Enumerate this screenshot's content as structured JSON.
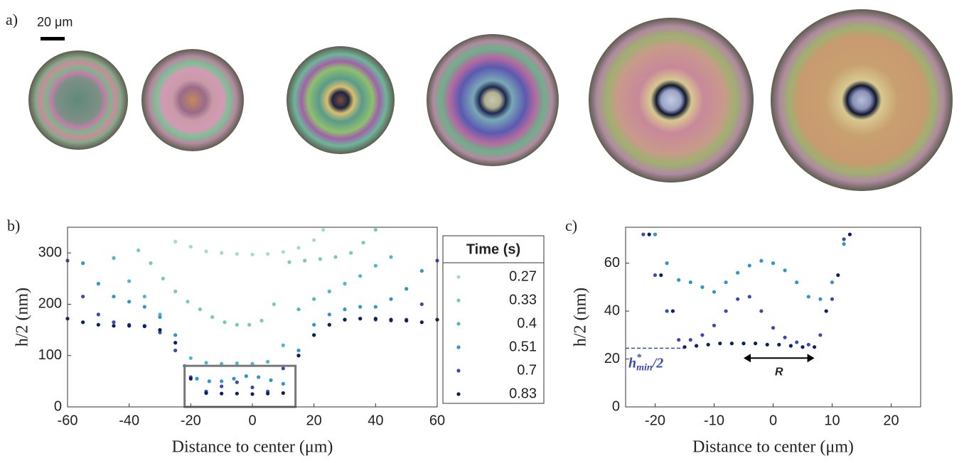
{
  "panel_a": {
    "label": "a)",
    "scale_bar": "20 μm"
  },
  "chart_data": [
    {
      "type": "scatter",
      "panel_label": "b)",
      "xlabel": "Distance to center (μm)",
      "ylabel": "h/2 (nm)",
      "xlim": [
        -60,
        60
      ],
      "ylim": [
        0,
        350
      ],
      "xticks": [
        -60,
        -40,
        -20,
        0,
        20,
        40,
        60
      ],
      "yticks": [
        0,
        100,
        200,
        300
      ],
      "legend_title": "Time (s)",
      "zoom_box": {
        "xlim": [
          -22,
          14
        ],
        "ylim": [
          0,
          80
        ]
      },
      "series": [
        {
          "name": "0.27",
          "color": "#a6dcc4",
          "x": [
            -25,
            -20,
            -15,
            -10,
            -5,
            0,
            5,
            10,
            15,
            20,
            23
          ],
          "values": [
            322,
            312,
            303,
            300,
            298,
            297,
            298,
            302,
            310,
            325,
            345
          ]
        },
        {
          "name": "0.33",
          "color": "#78c9b6",
          "x": [
            -37,
            -33,
            -29,
            -25,
            -21,
            -17,
            -13,
            -9,
            -5,
            -1,
            3,
            7,
            12,
            17,
            22,
            27,
            32,
            36,
            40
          ],
          "values": [
            305,
            280,
            250,
            225,
            205,
            190,
            175,
            165,
            160,
            160,
            168,
            200,
            282,
            285,
            288,
            292,
            300,
            320,
            345
          ]
        },
        {
          "name": "0.4",
          "color": "#52b6c4",
          "x": [
            -45,
            -40,
            -35,
            -30,
            -25,
            -20,
            -15,
            -10,
            -5,
            0,
            5,
            10,
            15,
            20,
            25,
            30,
            35,
            40,
            45
          ],
          "values": [
            290,
            245,
            215,
            180,
            140,
            95,
            86,
            84,
            85,
            84,
            88,
            120,
            190,
            210,
            225,
            240,
            255,
            275,
            292
          ]
        },
        {
          "name": "0.51",
          "color": "#2f96c6",
          "x": [
            -55,
            -50,
            -45,
            -40,
            -35,
            -30,
            -25,
            -22,
            -18,
            -14,
            -10,
            -6,
            -2,
            2,
            6,
            10,
            15,
            20,
            25,
            30,
            35,
            40,
            45,
            50,
            55
          ],
          "values": [
            280,
            240,
            215,
            205,
            195,
            175,
            140,
            80,
            55,
            50,
            50,
            55,
            60,
            58,
            52,
            45,
            110,
            160,
            180,
            190,
            195,
            195,
            210,
            230,
            265
          ]
        },
        {
          "name": "0.7",
          "color": "#3a4ab0",
          "x": [
            -60,
            -55,
            -50,
            -45,
            -40,
            -35,
            -30,
            -25,
            -20,
            -15,
            -10,
            -5,
            0,
            5,
            10,
            15,
            20,
            25,
            30,
            35,
            40,
            45,
            50,
            55,
            60
          ],
          "values": [
            285,
            215,
            180,
            165,
            160,
            158,
            145,
            110,
            58,
            30,
            40,
            48,
            38,
            30,
            75,
            100,
            140,
            160,
            170,
            172,
            170,
            168,
            170,
            200,
            285
          ]
        },
        {
          "name": "0.83",
          "color": "#0d1f5c",
          "x": [
            -60,
            -55,
            -50,
            -45,
            -40,
            -35,
            -30,
            -25,
            -20,
            -15,
            -10,
            -5,
            0,
            5,
            10,
            15,
            20,
            25,
            30,
            35,
            40,
            45,
            50,
            55,
            60
          ],
          "values": [
            172,
            165,
            160,
            158,
            158,
            157,
            150,
            125,
            55,
            27,
            26,
            26,
            25,
            26,
            27,
            100,
            140,
            160,
            170,
            172,
            172,
            170,
            168,
            165,
            170
          ]
        }
      ]
    },
    {
      "type": "scatter",
      "panel_label": "c)",
      "xlabel": "Distance to center (μm)",
      "ylabel": "h/2 (nm)",
      "xlim": [
        -25,
        25
      ],
      "ylim": [
        0,
        75
      ],
      "xticks": [
        -20,
        -10,
        0,
        10,
        20
      ],
      "yticks": [
        0,
        20,
        40,
        60
      ],
      "hmin": {
        "base": "h",
        "sup": "*",
        "sub": "min",
        "rest": "/2",
        "value": 24.5
      },
      "r_arrow": {
        "label": "R",
        "x": [
          -5,
          7
        ],
        "y": 18
      },
      "series": [
        {
          "color": "#2f96c6",
          "x": [
            -20,
            -18,
            -16,
            -14,
            -12,
            -10,
            -8,
            -6,
            -4,
            -2,
            0,
            2,
            4,
            6,
            8,
            10,
            12
          ],
          "values": [
            72,
            60,
            53,
            52,
            50,
            48,
            52,
            56,
            59,
            61,
            60,
            57,
            52,
            46,
            45,
            52,
            68
          ]
        },
        {
          "color": "#3a4ab0",
          "x": [
            -22,
            -20,
            -18,
            -16,
            -14,
            -12,
            -10,
            -8,
            -6,
            -4,
            -2,
            0,
            2,
            4,
            6,
            8,
            10,
            12
          ],
          "values": [
            72,
            55,
            40,
            28,
            28,
            30,
            34,
            40,
            45,
            46,
            40,
            33,
            29,
            27,
            26,
            30,
            45,
            70
          ]
        },
        {
          "color": "#0d1f5c",
          "x": [
            -21,
            -19,
            -17,
            -15,
            -13,
            -11,
            -9,
            -7,
            -5,
            -3,
            -1,
            1,
            3,
            5,
            7,
            9,
            11,
            13
          ],
          "values": [
            72,
            55,
            40,
            25,
            25.5,
            26,
            26.5,
            26.5,
            26.5,
            26.5,
            26,
            26,
            25.5,
            25,
            25,
            40,
            55,
            72
          ]
        }
      ]
    }
  ]
}
